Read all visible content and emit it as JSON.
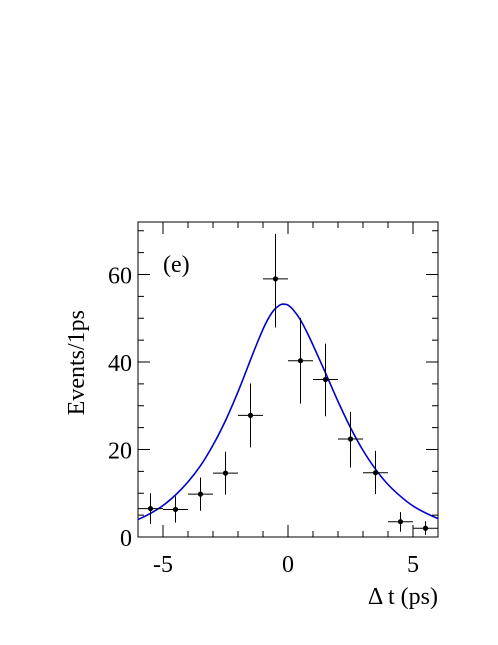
{
  "chart_data": {
    "type": "scatter",
    "title": "",
    "annotation": "(e)",
    "xlabel": "Δ t (ps)",
    "ylabel": "Events/1ps",
    "xlim": [
      -6,
      6
    ],
    "ylim": [
      0,
      72
    ],
    "x_ticks": [
      -5,
      0,
      5
    ],
    "x_tick_labels": [
      "-5",
      "0",
      "5"
    ],
    "y_ticks": [
      0,
      20,
      40,
      60
    ],
    "y_tick_labels": [
      "0",
      "20",
      "40",
      "60"
    ],
    "grid": false,
    "series": [
      {
        "kind": "points-with-errors",
        "x": [
          -5.5,
          -4.5,
          -3.5,
          -2.5,
          -1.5,
          -0.5,
          0.5,
          1.5,
          2.5,
          3.5,
          4.5,
          5.5
        ],
        "y": [
          6.5,
          6.3,
          9.8,
          14.6,
          27.8,
          59.0,
          40.3,
          36.0,
          22.4,
          14.7,
          3.5,
          2.0
        ],
        "yerr_low": [
          3.5,
          3.0,
          3.8,
          4.9,
          7.3,
          11.1,
          9.8,
          8.4,
          6.5,
          4.9,
          2.3,
          1.5
        ],
        "yerr_high": [
          3.5,
          3.0,
          3.8,
          4.9,
          7.3,
          10.3,
          9.8,
          8.2,
          6.2,
          5.0,
          2.2,
          1.6
        ],
        "xerr": 0.5,
        "color": "#000000"
      },
      {
        "kind": "fit-curve",
        "x": [
          -6.0,
          -5.5,
          -5.0,
          -4.5,
          -4.0,
          -3.5,
          -3.0,
          -2.5,
          -2.0,
          -1.5,
          -1.2,
          -0.9,
          -0.6,
          -0.3,
          -0.1,
          0.0,
          0.2,
          0.5,
          0.8,
          1.1,
          1.5,
          2.0,
          2.5,
          3.0,
          3.5,
          4.0,
          4.5,
          5.0,
          5.5,
          6.0
        ],
        "y": [
          4.0,
          5.4,
          7.2,
          9.6,
          12.6,
          16.3,
          21.0,
          26.6,
          33.2,
          40.5,
          44.8,
          48.7,
          51.6,
          53.1,
          53.2,
          53.0,
          52.0,
          49.6,
          46.3,
          42.6,
          37.5,
          31.0,
          25.0,
          19.8,
          15.5,
          12.0,
          9.3,
          7.1,
          5.5,
          4.2
        ],
        "color": "#0000cc"
      }
    ]
  }
}
